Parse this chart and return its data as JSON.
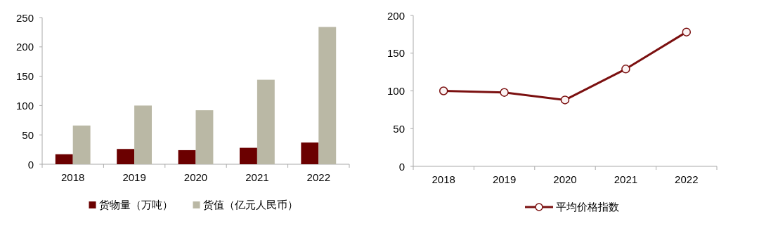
{
  "chart_data": [
    {
      "type": "bar",
      "categories": [
        "2018",
        "2019",
        "2020",
        "2021",
        "2022"
      ],
      "series": [
        {
          "name": "货物量（万吨）",
          "color": "#6b0000",
          "values": [
            17,
            26,
            24,
            28,
            37
          ]
        },
        {
          "name": "货值（亿元人民币）",
          "color": "#bab8a5",
          "values": [
            66,
            100,
            92,
            144,
            234
          ]
        }
      ],
      "ylim": [
        0,
        250
      ],
      "yticks": [
        0,
        50,
        100,
        150,
        200,
        250
      ],
      "grid": false,
      "legend": "bottom"
    },
    {
      "type": "line",
      "categories": [
        "2018",
        "2019",
        "2020",
        "2021",
        "2022"
      ],
      "series": [
        {
          "name": "平均价格指数",
          "color": "#7b1010",
          "values": [
            100,
            98,
            88,
            129,
            178
          ]
        }
      ],
      "ylim": [
        0,
        200
      ],
      "yticks": [
        0,
        50,
        100,
        150,
        200
      ],
      "grid": false,
      "legend": "bottom",
      "marker": "circle",
      "line_style": "solid"
    }
  ]
}
